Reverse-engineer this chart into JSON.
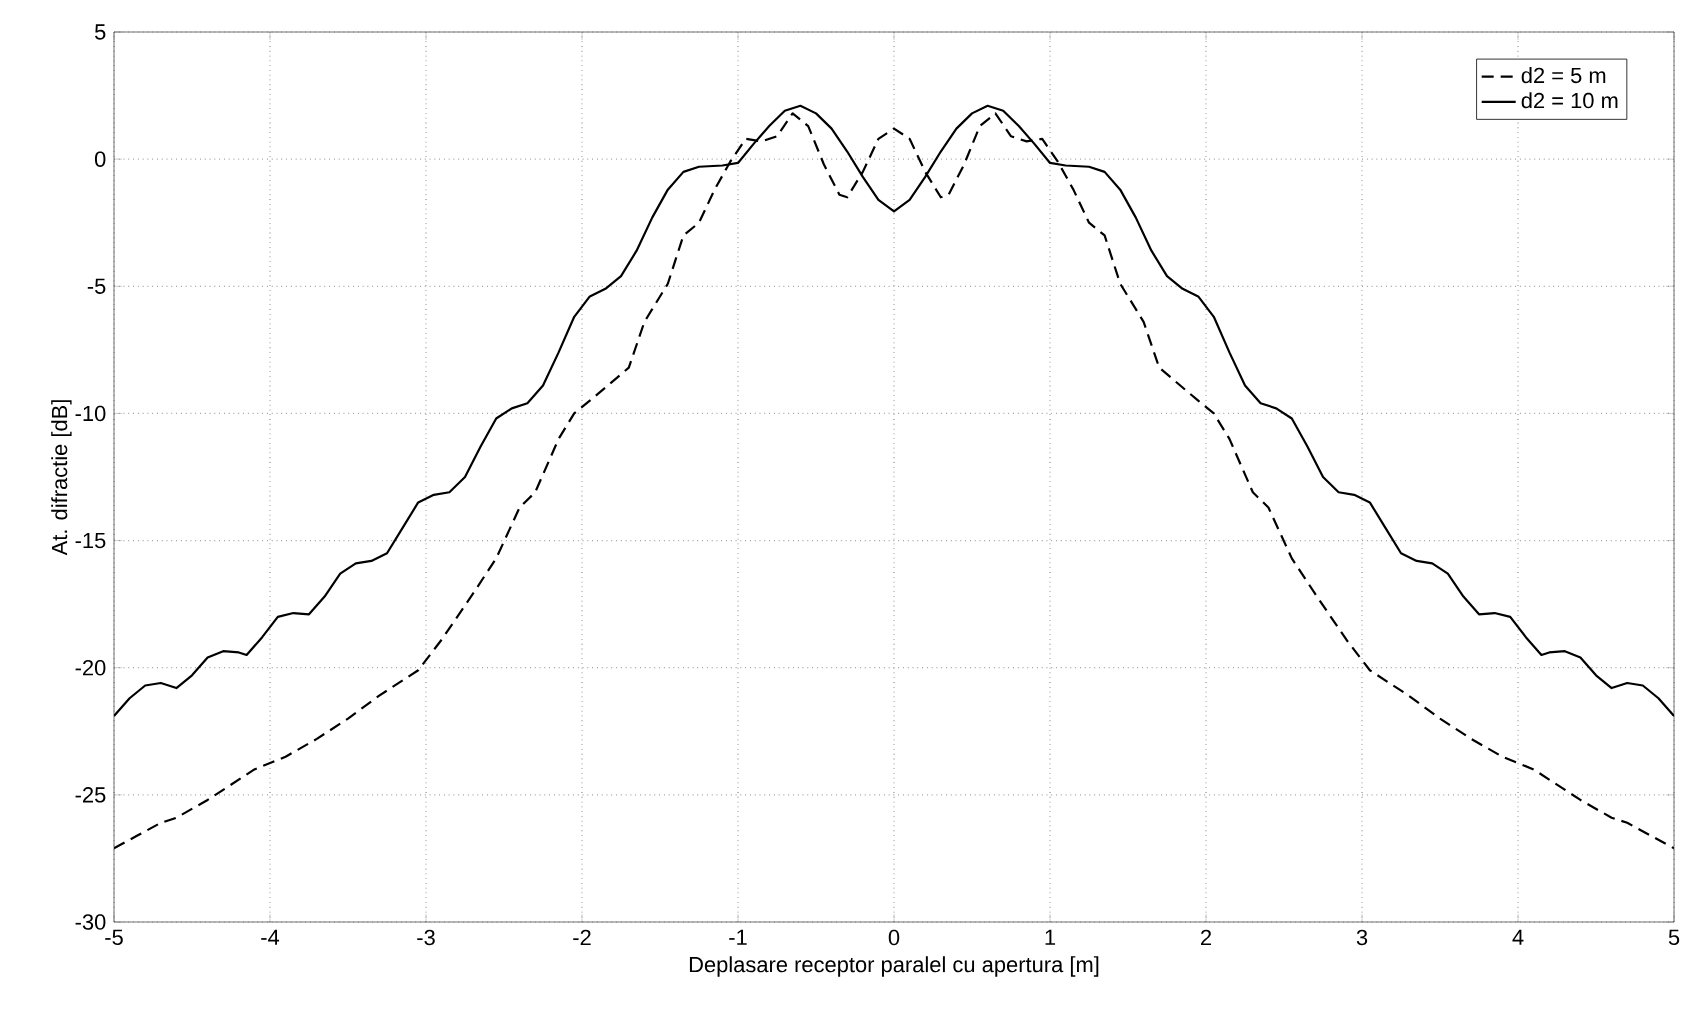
{
  "chart_data": {
    "type": "line",
    "xlabel": "Deplasare receptor paralel cu apertura [m]",
    "ylabel": "At. difractie [dB]",
    "xlim": [
      -5,
      5
    ],
    "xticks": [
      -5,
      -4,
      -3,
      -2,
      -1,
      0,
      1,
      2,
      3,
      4,
      5
    ],
    "ylim": [
      -30,
      5
    ],
    "yticks": [
      -30,
      -25,
      -20,
      -15,
      -10,
      -5,
      0,
      5
    ],
    "grid": true,
    "legend": "top right",
    "marker": "none",
    "series": [
      {
        "name": "d2 = 5 m",
        "color": "#000000",
        "line_style": "dashed",
        "x": [
          -5,
          -4.85,
          -4.7,
          -4.6,
          -4.4,
          -4.1,
          -3.9,
          -3.7,
          -3.5,
          -3.3,
          -3.05,
          -2.9,
          -2.7,
          -2.55,
          -2.4,
          -2.3,
          -2.15,
          -2.05,
          -1.95,
          -1.7,
          -1.6,
          -1.55,
          -1.45,
          -1.35,
          -1.25,
          -1.15,
          -1.05,
          -0.95,
          -0.85,
          -0.75,
          -0.65,
          -0.55,
          -0.45,
          -0.35,
          -0.3,
          -0.2,
          -0.1,
          0,
          0.1,
          0.2,
          0.3,
          0.35,
          0.45,
          0.55,
          0.65,
          0.75,
          0.85,
          0.95,
          1.05,
          1.15,
          1.25,
          1.35,
          1.45,
          1.55,
          1.6,
          1.7,
          1.95,
          2.05,
          2.15,
          2.3,
          2.4,
          2.55,
          2.7,
          2.9,
          3.05,
          3.3,
          3.5,
          3.7,
          3.9,
          4.1,
          4.4,
          4.6,
          4.7,
          4.85,
          5
        ],
        "values": [
          -27.1,
          -26.6,
          -26.1,
          -25.9,
          -25.2,
          -24.0,
          -23.5,
          -22.8,
          -22.0,
          -21.1,
          -20.1,
          -18.9,
          -17.1,
          -15.7,
          -13.7,
          -13.1,
          -11.0,
          -10.0,
          -9.5,
          -8.2,
          -6.4,
          -5.9,
          -4.9,
          -3.0,
          -2.5,
          -1.2,
          -0.1,
          0.8,
          0.7,
          0.9,
          1.8,
          1.3,
          -0.2,
          -1.4,
          -1.5,
          -0.5,
          0.8,
          1.2,
          0.8,
          -0.5,
          -1.5,
          -1.4,
          -0.2,
          1.3,
          1.8,
          0.9,
          0.7,
          0.8,
          -0.1,
          -1.2,
          -2.5,
          -3.0,
          -4.9,
          -5.9,
          -6.4,
          -8.2,
          -9.5,
          -10.0,
          -11.0,
          -13.1,
          -13.7,
          -15.7,
          -17.1,
          -18.9,
          -20.1,
          -21.1,
          -22.0,
          -22.8,
          -23.5,
          -24.0,
          -25.2,
          -25.9,
          -26.1,
          -26.6,
          -27.1
        ]
      },
      {
        "name": "d2 = 10 m",
        "color": "#000000",
        "line_style": "solid",
        "x": [
          -5,
          -4.9,
          -4.8,
          -4.7,
          -4.6,
          -4.5,
          -4.4,
          -4.3,
          -4.2,
          -4.15,
          -4.05,
          -3.95,
          -3.85,
          -3.75,
          -3.65,
          -3.55,
          -3.45,
          -3.35,
          -3.25,
          -3.15,
          -3.05,
          -2.95,
          -2.85,
          -2.75,
          -2.65,
          -2.55,
          -2.45,
          -2.35,
          -2.25,
          -2.15,
          -2.05,
          -1.95,
          -1.85,
          -1.75,
          -1.65,
          -1.55,
          -1.45,
          -1.35,
          -1.25,
          -1.1,
          -1.0,
          -0.9,
          -0.8,
          -0.7,
          -0.6,
          -0.5,
          -0.4,
          -0.3,
          -0.2,
          -0.1,
          0,
          0.1,
          0.2,
          0.3,
          0.4,
          0.5,
          0.6,
          0.7,
          0.8,
          0.9,
          1.0,
          1.1,
          1.25,
          1.35,
          1.45,
          1.55,
          1.65,
          1.75,
          1.85,
          1.95,
          2.05,
          2.15,
          2.25,
          2.35,
          2.45,
          2.55,
          2.65,
          2.75,
          2.85,
          2.95,
          3.05,
          3.15,
          3.25,
          3.35,
          3.45,
          3.55,
          3.65,
          3.75,
          3.85,
          3.95,
          4.05,
          4.15,
          4.2,
          4.3,
          4.4,
          4.5,
          4.6,
          4.7,
          4.8,
          4.9,
          5
        ],
        "values": [
          -21.9,
          -21.2,
          -20.7,
          -20.6,
          -20.8,
          -20.3,
          -19.6,
          -19.35,
          -19.4,
          -19.5,
          -18.8,
          -18.0,
          -17.85,
          -17.9,
          -17.2,
          -16.3,
          -15.9,
          -15.8,
          -15.5,
          -14.5,
          -13.5,
          -13.2,
          -13.1,
          -12.5,
          -11.3,
          -10.2,
          -9.8,
          -9.6,
          -8.9,
          -7.6,
          -6.2,
          -5.4,
          -5.1,
          -4.6,
          -3.6,
          -2.3,
          -1.2,
          -0.5,
          -0.3,
          -0.25,
          -0.15,
          0.6,
          1.3,
          1.9,
          2.1,
          1.8,
          1.2,
          0.3,
          -0.7,
          -1.6,
          -2.05,
          -1.6,
          -0.7,
          0.3,
          1.2,
          1.8,
          2.1,
          1.9,
          1.3,
          0.6,
          -0.15,
          -0.25,
          -0.3,
          -0.5,
          -1.2,
          -2.3,
          -3.6,
          -4.6,
          -5.1,
          -5.4,
          -6.2,
          -7.6,
          -8.9,
          -9.6,
          -9.8,
          -10.2,
          -11.3,
          -12.5,
          -13.1,
          -13.2,
          -13.5,
          -14.5,
          -15.5,
          -15.8,
          -15.9,
          -16.3,
          -17.2,
          -17.9,
          -17.85,
          -18.0,
          -18.8,
          -19.5,
          -19.4,
          -19.35,
          -19.6,
          -20.3,
          -20.8,
          -20.6,
          -20.7,
          -21.2,
          -21.9
        ]
      }
    ]
  }
}
